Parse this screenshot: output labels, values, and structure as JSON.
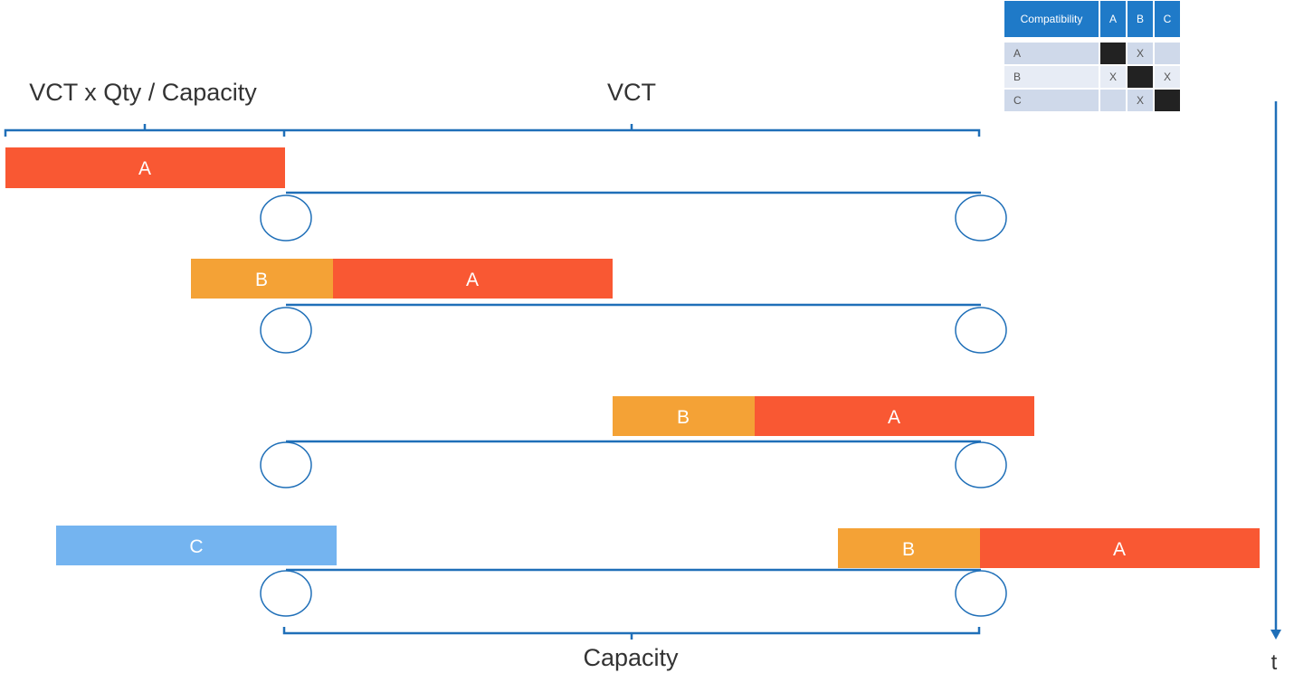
{
  "labels": {
    "top_left": "VCT x Qty / Capacity",
    "top_right": "VCT",
    "bottom": "Capacity",
    "time_axis": "t"
  },
  "compatibility": {
    "header": "Compatibility",
    "columns": [
      "A",
      "B",
      "C"
    ],
    "rows": [
      {
        "label": "A",
        "cells": [
          "self",
          "X",
          ""
        ]
      },
      {
        "label": "B",
        "cells": [
          "X",
          "self",
          "X"
        ]
      },
      {
        "label": "C",
        "cells": [
          "",
          "X",
          "self"
        ]
      }
    ]
  },
  "stages": [
    {
      "blocks": [
        {
          "label": "A",
          "type": "A"
        }
      ]
    },
    {
      "blocks": [
        {
          "label": "B",
          "type": "B"
        },
        {
          "label": "A",
          "type": "A"
        }
      ]
    },
    {
      "blocks": [
        {
          "label": "B",
          "type": "B"
        },
        {
          "label": "A",
          "type": "A"
        }
      ]
    },
    {
      "blocks": [
        {
          "label": "C",
          "type": "C"
        },
        {
          "label": "B",
          "type": "B"
        },
        {
          "label": "A",
          "type": "A"
        }
      ]
    }
  ],
  "colors": {
    "A": "#f95833",
    "B": "#f4a236",
    "C": "#74b4f0",
    "line": "#1f6fb8",
    "header": "#1f7ac8"
  }
}
